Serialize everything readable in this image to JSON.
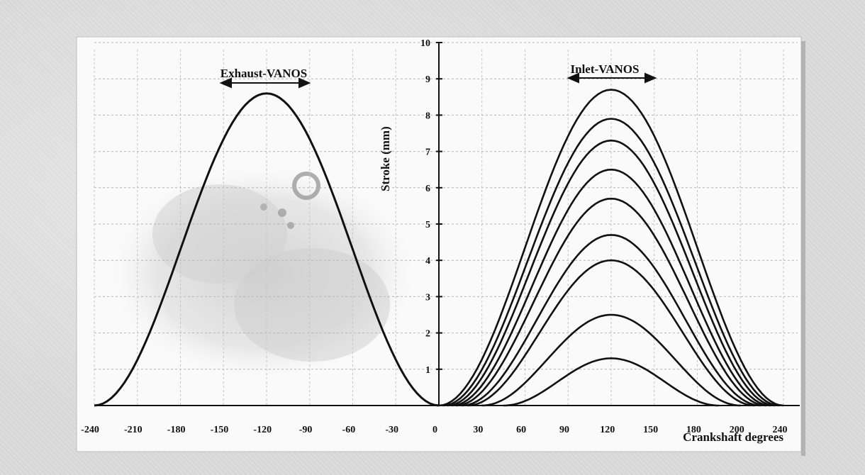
{
  "chart_data": {
    "type": "line",
    "annotations": {
      "exhaust": "Exhaust-VANOS",
      "inlet": "Inlet-VANOS"
    },
    "xlabel": "Crankshaft degrees",
    "ylabel": "Stroke (mm)",
    "xlim": [
      -240,
      240
    ],
    "ylim": [
      0,
      10
    ],
    "x_ticks": [
      "-240",
      "-210",
      "-180",
      "-150",
      "-120",
      "-90",
      "-60",
      "-30",
      "0",
      "30",
      "60",
      "90",
      "120",
      "150",
      "180",
      "200",
      "240"
    ],
    "y_ticks": [
      "1",
      "2",
      "3",
      "4",
      "5",
      "6",
      "7",
      "8",
      "9",
      "10"
    ],
    "grid": true,
    "exhaust_curve": {
      "peak_x": -120,
      "peak_y": 8.6,
      "start_x": -240,
      "end_x": 0
    },
    "inlet_curves": {
      "peak_x": 120,
      "peak_y": [
        8.7,
        7.9,
        7.3,
        6.5,
        5.7,
        4.7,
        4.0,
        2.5,
        1.3
      ],
      "start_x": [
        0,
        3,
        6,
        9,
        12,
        16,
        20,
        30,
        45
      ],
      "end_x": [
        240,
        237,
        234,
        231,
        228,
        224,
        220,
        210,
        195
      ]
    }
  }
}
